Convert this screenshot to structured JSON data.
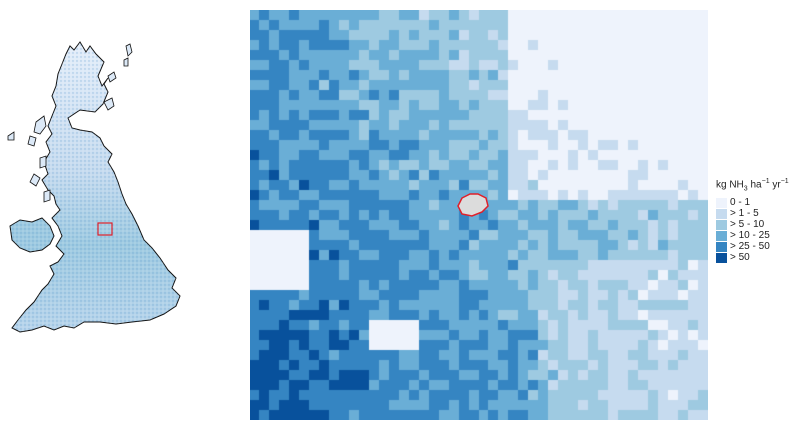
{
  "legend": {
    "title_prefix": "kg NH",
    "title_sub": "3",
    "title_mid1": " ha",
    "title_sup1": "−1",
    "title_mid2": " yr",
    "title_sup2": "−1",
    "items": [
      {
        "label": "0 - 1",
        "color": "#eef3fc"
      },
      {
        "label": "> 1 - 5",
        "color": "#c6dbef"
      },
      {
        "label": "> 5 - 10",
        "color": "#9ecae1"
      },
      {
        "label": "> 10 - 25",
        "color": "#6aaed6"
      },
      {
        "label": "> 25 - 50",
        "color": "#3585c2"
      },
      {
        "label": "> 50",
        "color": "#08519c"
      }
    ]
  },
  "colors": {
    "land_base": "#9ecae1",
    "coastline": "#111111",
    "highlight": "#e0202a",
    "site_fill": "#dcdcdc",
    "background": "#ffffff"
  }
}
